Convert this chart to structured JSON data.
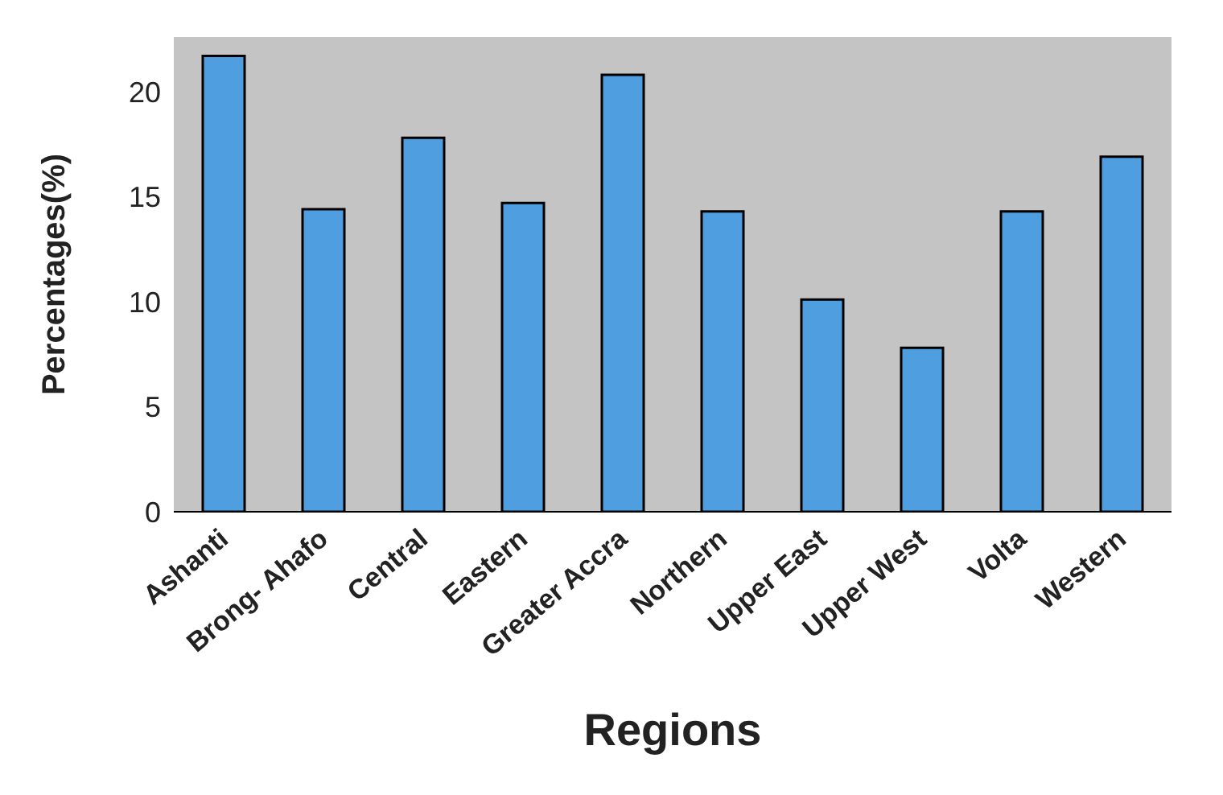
{
  "chart_data": {
    "type": "bar",
    "xlabel": "Regions",
    "ylabel": "Percentages(%)",
    "categories": [
      "Ashanti",
      "Brong- Ahafo",
      "Central",
      "Eastern",
      "Greater Accra",
      "Northern",
      "Upper East",
      "Upper West",
      "Volta",
      "Western"
    ],
    "values": [
      21.7,
      14.4,
      17.8,
      14.7,
      20.8,
      14.3,
      10.1,
      7.8,
      14.3,
      16.9
    ],
    "color": "#4f9fe0",
    "ylim": [
      0,
      22.6
    ],
    "yticks": [
      0,
      5,
      10,
      15,
      20
    ],
    "grid": false
  }
}
